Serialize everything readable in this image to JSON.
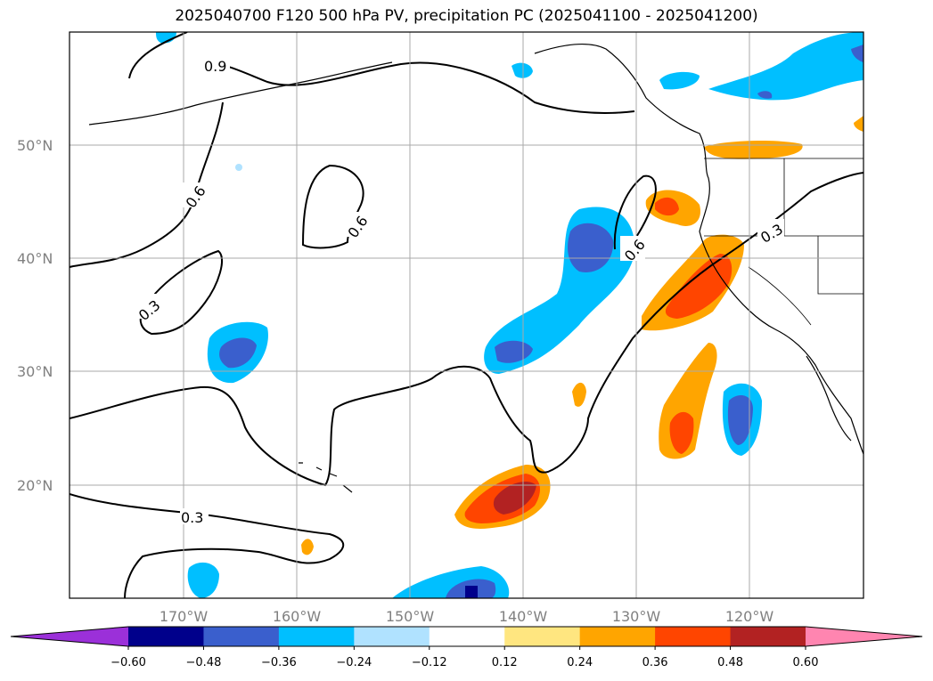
{
  "title": "2025040700 F120 500 hPa PV, precipitation PC (2025041100 - 2025041200)",
  "map": {
    "longitude_labels": [
      "170°W",
      "160°W",
      "150°W",
      "140°W",
      "130°W",
      "120°W"
    ],
    "latitude_labels": [
      "50°N",
      "40°N",
      "30°N",
      "20°N"
    ],
    "grid": true,
    "contour_labels": [
      "0.9",
      "0.6",
      "0.6",
      "0.6",
      "0.3",
      "0.3",
      "0.3"
    ]
  },
  "colorbar": {
    "ticks": [
      "−0.60",
      "−0.48",
      "−0.36",
      "−0.24",
      "−0.12",
      "0.12",
      "0.24",
      "0.36",
      "0.48",
      "0.60"
    ],
    "colors": [
      "#9b30d9",
      "#00008b",
      "#3a5fcd",
      "#00bfff",
      "#b0e2ff",
      "#ffffff",
      "#ffe680",
      "#ffa500",
      "#ff4500",
      "#b22222",
      "#ff85b0"
    ]
  },
  "colors": {
    "neg_weak": "#b0e2ff",
    "neg_mid": "#00bfff",
    "neg_strong": "#3a5fcd",
    "neg_max": "#00008b",
    "pos_weak": "#ffe680",
    "pos_mid": "#ffa500",
    "pos_strong": "#ff4500",
    "pos_max": "#b22222"
  }
}
